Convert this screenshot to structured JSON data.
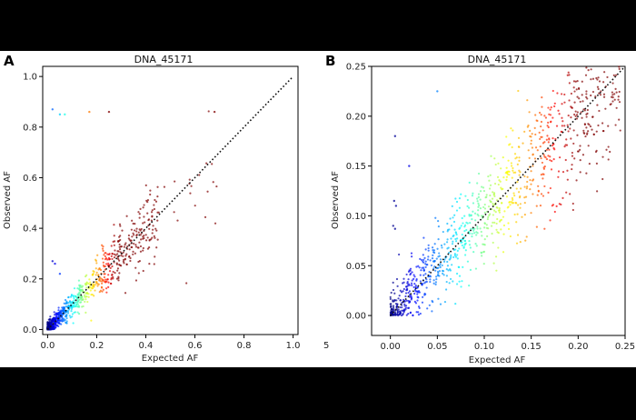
{
  "chart_data": [
    {
      "type": "scatter",
      "panel_label": "A",
      "title": "DNA_45171",
      "xlabel": "Expected AF",
      "ylabel": "Observed AF",
      "xlim": [
        -0.02,
        1.02
      ],
      "ylim": [
        -0.02,
        1.04
      ],
      "xticks": [
        0.0,
        0.2,
        0.4,
        0.6,
        0.8,
        1.0
      ],
      "xtick_labels": [
        "0.0",
        "0.2",
        "0.4",
        "0.6",
        "0.8",
        "1.0"
      ],
      "yticks": [
        0.0,
        0.2,
        0.4,
        0.6,
        0.8,
        1.0
      ],
      "ytick_labels": [
        "0.0",
        "0.2",
        "0.4",
        "0.6",
        "0.8",
        "1.0"
      ],
      "reference_line": {
        "from": [
          0,
          0
        ],
        "to": [
          1,
          1
        ],
        "style": "dotted",
        "color": "#111111"
      },
      "colormap": "jet",
      "outliers": [
        {
          "x": 0.02,
          "y": 0.87
        },
        {
          "x": 0.05,
          "y": 0.85
        },
        {
          "x": 0.07,
          "y": 0.85
        },
        {
          "x": 0.17,
          "y": 0.86
        },
        {
          "x": 0.25,
          "y": 0.86
        },
        {
          "x": 0.68,
          "y": 0.86
        },
        {
          "x": 0.02,
          "y": 0.27
        },
        {
          "x": 0.03,
          "y": 0.26
        },
        {
          "x": 0.05,
          "y": 0.22
        }
      ],
      "grid": false
    },
    {
      "type": "scatter",
      "panel_label": "B",
      "title": "DNA_45171",
      "xlabel": "Expected AF",
      "ylabel": "Observed AF",
      "xlim": [
        -0.02,
        0.25
      ],
      "ylim": [
        -0.02,
        0.25
      ],
      "xticks": [
        0.0,
        0.05,
        0.1,
        0.15,
        0.2,
        0.25
      ],
      "xtick_labels": [
        "0.00",
        "0.05",
        "0.10",
        "0.15",
        "0.20",
        "0.25"
      ],
      "yticks": [
        0.0,
        0.05,
        0.1,
        0.15,
        0.2,
        0.25
      ],
      "ytick_labels": [
        "0.00",
        "0.05",
        "0.10",
        "0.15",
        "0.20",
        "0.25"
      ],
      "reference_line": {
        "from": [
          0,
          0
        ],
        "to": [
          0.25,
          0.25
        ],
        "style": "dotted",
        "color": "#111111"
      },
      "colormap": "jet",
      "outliers": [
        {
          "x": 0.005,
          "y": 0.18
        },
        {
          "x": 0.004,
          "y": 0.115
        },
        {
          "x": 0.006,
          "y": 0.11
        },
        {
          "x": 0.003,
          "y": 0.09
        },
        {
          "x": 0.005,
          "y": 0.087
        },
        {
          "x": 0.05,
          "y": 0.225
        },
        {
          "x": 0.02,
          "y": 0.15
        }
      ],
      "grid": false
    }
  ],
  "stray_text": "5"
}
